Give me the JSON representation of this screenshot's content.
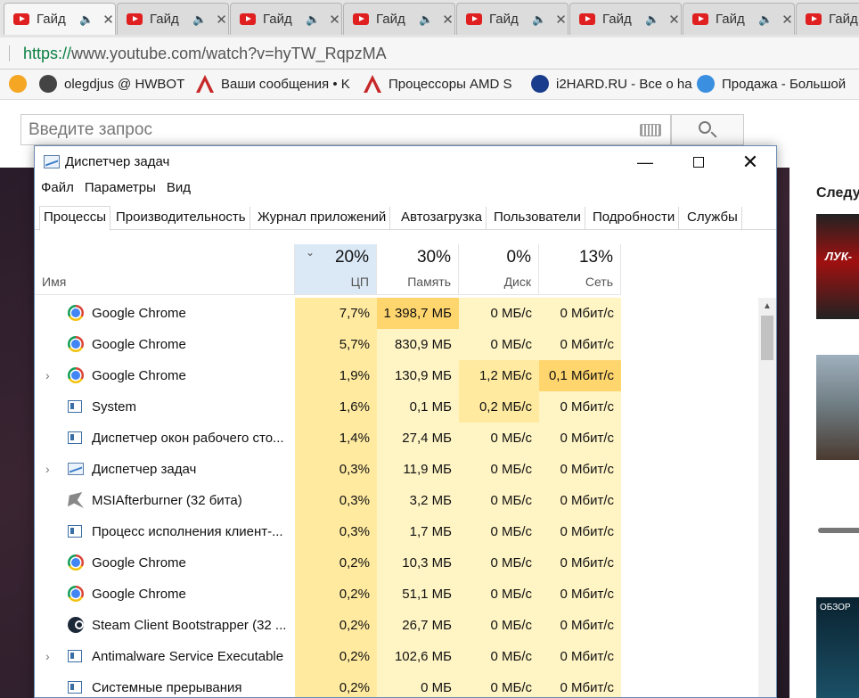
{
  "browser": {
    "tabs": [
      {
        "title": "Гайд",
        "active": true
      },
      {
        "title": "Гайд",
        "active": false
      },
      {
        "title": "Гайд",
        "active": false
      },
      {
        "title": "Гайд",
        "active": false
      },
      {
        "title": "Гайд",
        "active": false
      },
      {
        "title": "Гайд",
        "active": false
      },
      {
        "title": "Гайд",
        "active": false
      },
      {
        "title": "Гайд",
        "active": false
      }
    ],
    "url_proto": "https://",
    "url_host": "www.youtube.com",
    "url_path": "/watch?v=hyTW_RqpzMA",
    "bookmarks": [
      {
        "label": "",
        "icon": "at-icon"
      },
      {
        "label": "olegdjus @ HWBOT",
        "icon": "hwbot-icon"
      },
      {
        "label": "Ваши сообщения • K",
        "icon": "overclockers-icon"
      },
      {
        "label": "Процессоры AMD S",
        "icon": "overclockers-icon"
      },
      {
        "label": "i2HARD.RU - Все о ha",
        "icon": "i2hard-icon"
      },
      {
        "label": "Продажа - Большой",
        "icon": "chat-bubble-icon"
      }
    ]
  },
  "youtube": {
    "search_placeholder": "Введите запрос",
    "next_label": "Следу",
    "thumb1_text": "ЛУК-",
    "thumb4_text": "ОБЗОР"
  },
  "taskmgr": {
    "title": "Диспетчер задач",
    "menu": [
      "Файл",
      "Параметры",
      "Вид"
    ],
    "tabs": [
      "Процессы",
      "Производительность",
      "Журнал приложений",
      "Автозагрузка",
      "Пользователи",
      "Подробности",
      "Службы"
    ],
    "columns": {
      "name": "Имя",
      "cpu": {
        "pct": "20%",
        "label": "ЦП"
      },
      "mem": {
        "pct": "30%",
        "label": "Память"
      },
      "disk": {
        "pct": "0%",
        "label": "Диск"
      },
      "net": {
        "pct": "13%",
        "label": "Сеть"
      }
    },
    "rows": [
      {
        "name": "Google Chrome",
        "icon": "chrome",
        "expandable": false,
        "cpu": "7,7%",
        "mem": "1 398,7 МБ",
        "disk": "0 МБ/с",
        "net": "0 Мбит/с"
      },
      {
        "name": "Google Chrome",
        "icon": "chrome",
        "expandable": false,
        "cpu": "5,7%",
        "mem": "830,9 МБ",
        "disk": "0 МБ/с",
        "net": "0 Мбит/с"
      },
      {
        "name": "Google Chrome",
        "icon": "chrome",
        "expandable": true,
        "cpu": "1,9%",
        "mem": "130,9 МБ",
        "disk": "1,2 МБ/с",
        "net": "0,1 Мбит/с"
      },
      {
        "name": "System",
        "icon": "window",
        "expandable": false,
        "cpu": "1,6%",
        "mem": "0,1 МБ",
        "disk": "0,2 МБ/с",
        "net": "0 Мбит/с"
      },
      {
        "name": "Диспетчер окон рабочего сто...",
        "icon": "window",
        "expandable": false,
        "cpu": "1,4%",
        "mem": "27,4 МБ",
        "disk": "0 МБ/с",
        "net": "0 Мбит/с"
      },
      {
        "name": "Диспетчер задач",
        "icon": "taskmgr",
        "expandable": true,
        "cpu": "0,3%",
        "mem": "11,9 МБ",
        "disk": "0 МБ/с",
        "net": "0 Мбит/с"
      },
      {
        "name": "MSIAfterburner (32 бита)",
        "icon": "msi",
        "expandable": false,
        "cpu": "0,3%",
        "mem": "3,2 МБ",
        "disk": "0 МБ/с",
        "net": "0 Мбит/с"
      },
      {
        "name": "Процесс исполнения клиент-...",
        "icon": "window",
        "expandable": false,
        "cpu": "0,3%",
        "mem": "1,7 МБ",
        "disk": "0 МБ/с",
        "net": "0 Мбит/с"
      },
      {
        "name": "Google Chrome",
        "icon": "chrome",
        "expandable": false,
        "cpu": "0,2%",
        "mem": "10,3 МБ",
        "disk": "0 МБ/с",
        "net": "0 Мбит/с"
      },
      {
        "name": "Google Chrome",
        "icon": "chrome",
        "expandable": false,
        "cpu": "0,2%",
        "mem": "51,1 МБ",
        "disk": "0 МБ/с",
        "net": "0 Мбит/с"
      },
      {
        "name": "Steam Client Bootstrapper (32 ...",
        "icon": "steam",
        "expandable": false,
        "cpu": "0,2%",
        "mem": "26,7 МБ",
        "disk": "0 МБ/с",
        "net": "0 Мбит/с"
      },
      {
        "name": "Antimalware Service Executable",
        "icon": "window",
        "expandable": true,
        "cpu": "0,2%",
        "mem": "102,6 МБ",
        "disk": "0 МБ/с",
        "net": "0 Мбит/с"
      },
      {
        "name": "Системные прерывания",
        "icon": "window",
        "expandable": false,
        "cpu": "0,2%",
        "mem": "0 МБ",
        "disk": "0 МБ/с",
        "net": "0 Мбит/с"
      }
    ],
    "colors": {
      "heat_light": "#fff4c4",
      "heat_mid": "#ffeaa0",
      "heat_strong": "#ffd56e",
      "header_selected": "#dbe9f7"
    }
  }
}
